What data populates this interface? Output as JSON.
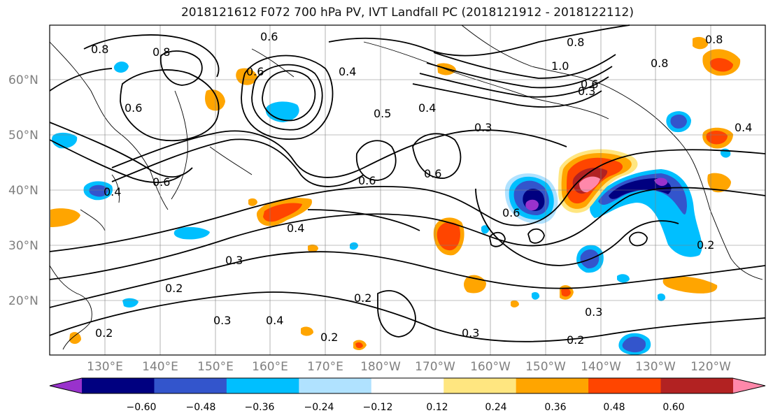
{
  "title": "2018121612 F072 700 hPa PV, IVT Landfall PC (2018121912 - 2018122112)",
  "lat_labels": [
    "60°N",
    "50°N",
    "40°N",
    "30°N",
    "20°N"
  ],
  "lon_labels": [
    "130°E",
    "140°E",
    "150°E",
    "160°E",
    "170°E",
    "180°W",
    "170°W",
    "160°W",
    "150°W",
    "140°W",
    "130°W",
    "120°W"
  ],
  "contour_labels": [
    "0.8",
    "0.8",
    "0.6",
    "0.8",
    "0.6",
    "0.4",
    "0.6",
    "0.5",
    "0.6",
    "0.4",
    "0.3",
    "0.4",
    "0.6",
    "0.6",
    "0.8",
    "1.0",
    "0.8",
    "0.4",
    "0.4",
    "0.6",
    "0.3",
    "0.3",
    "0.2",
    "0.2",
    "0.3",
    "0.4",
    "0.2",
    "0.3",
    "0.2",
    "0.2",
    "0.3",
    "0.2",
    "0.6"
  ],
  "colorbar": {
    "ticks": [
      "−0.60",
      "−0.48",
      "−0.36",
      "−0.24",
      "−0.12",
      "0.12",
      "0.24",
      "0.36",
      "0.48",
      "0.60"
    ],
    "colors": [
      "#9932cc",
      "#000080",
      "#3355cc",
      "#00bfff",
      "#b0e2ff",
      "#ffffff",
      "#ffe680",
      "#ffa500",
      "#ff4500",
      "#b22222",
      "#ff88aa"
    ]
  },
  "chart_data": {
    "type": "map",
    "title": "2018121612 F072 700 hPa PV, IVT Landfall PC (2018121912 - 2018122112)",
    "lon_range": [
      "120°E",
      "115°W"
    ],
    "lat_range": [
      "10°N",
      "70°N"
    ],
    "grid": true,
    "contours": "PV",
    "shading": "IVT Landfall PC",
    "colorbar_levels": [
      -0.6,
      -0.48,
      -0.36,
      -0.24,
      -0.12,
      0.12,
      0.24,
      0.36,
      0.48,
      0.6
    ]
  }
}
